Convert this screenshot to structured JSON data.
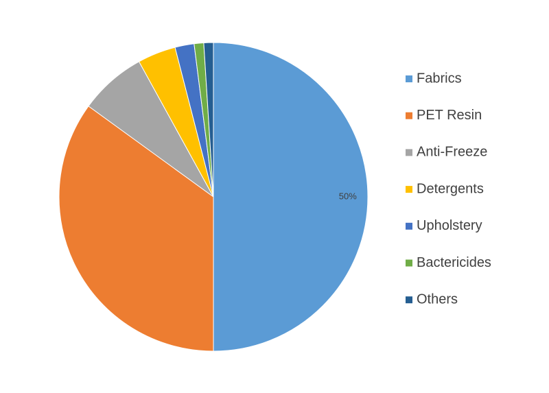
{
  "chart_data": {
    "type": "pie",
    "categories": [
      "Fabrics",
      "PET Resin",
      "Anti-Freeze",
      "Detergents",
      "Upholstery",
      "Bactericides",
      "Others"
    ],
    "values": [
      50,
      35,
      7,
      4,
      2,
      1,
      1
    ],
    "value_labels": [
      "50%",
      null,
      null,
      null,
      null,
      null,
      null
    ],
    "colors": [
      "#5b9bd5",
      "#ed7d31",
      "#a5a5a5",
      "#ffc000",
      "#4472c4",
      "#70ad47",
      "#255e91"
    ],
    "legend": "right"
  }
}
